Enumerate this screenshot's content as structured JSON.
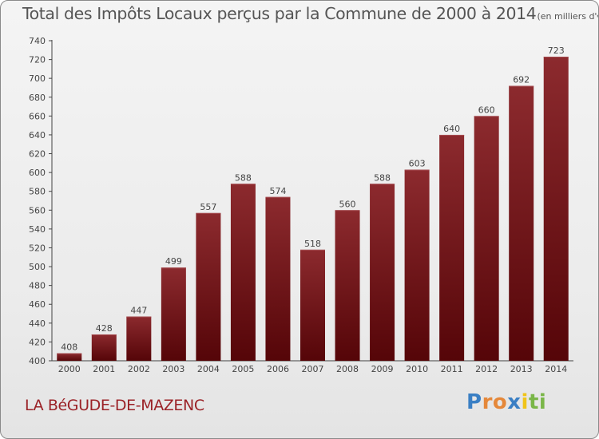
{
  "title": "Total des Impôts Locaux perçus par la Commune de 2000 à 2014",
  "unit_note": "(en milliers d'€)",
  "commune": "LA BéGUDE-DE-MAZENC",
  "logo": {
    "letters": [
      "P",
      "r",
      "o",
      "x",
      "i",
      "t",
      "i"
    ],
    "colors": [
      "#3a7fc4",
      "#e5883a",
      "#e5883a",
      "#3a7fc4",
      "#f0c419",
      "#7ab648",
      "#7ab648"
    ]
  },
  "chart_data": {
    "type": "bar",
    "categories": [
      "2000",
      "2001",
      "2002",
      "2003",
      "2004",
      "2005",
      "2006",
      "2007",
      "2008",
      "2009",
      "2010",
      "2011",
      "2012",
      "2013",
      "2014"
    ],
    "values": [
      408,
      428,
      447,
      499,
      557,
      588,
      574,
      518,
      560,
      588,
      603,
      640,
      660,
      692,
      723
    ],
    "ylim": [
      400,
      740
    ],
    "yticks": [
      400,
      420,
      440,
      460,
      480,
      500,
      520,
      540,
      560,
      580,
      600,
      620,
      640,
      660,
      680,
      700,
      720,
      740
    ],
    "grid": false,
    "bar_color": "#7a1418",
    "title": "Total des Impôts Locaux perçus par la Commune de 2000 à 2014",
    "xlabel": "",
    "ylabel": ""
  }
}
